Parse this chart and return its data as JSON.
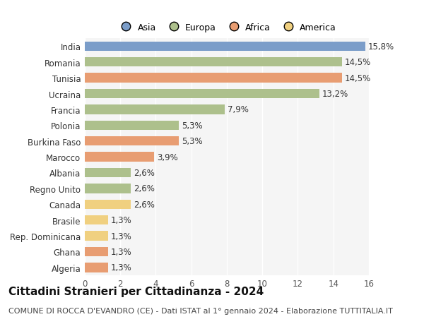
{
  "categories": [
    "India",
    "Romania",
    "Tunisia",
    "Ucraina",
    "Francia",
    "Polonia",
    "Burkina Faso",
    "Marocco",
    "Albania",
    "Regno Unito",
    "Canada",
    "Brasile",
    "Rep. Dominicana",
    "Ghana",
    "Algeria"
  ],
  "values": [
    15.8,
    14.5,
    14.5,
    13.2,
    7.9,
    5.3,
    5.3,
    3.9,
    2.6,
    2.6,
    2.6,
    1.3,
    1.3,
    1.3,
    1.3
  ],
  "labels": [
    "15,8%",
    "14,5%",
    "14,5%",
    "13,2%",
    "7,9%",
    "5,3%",
    "5,3%",
    "3,9%",
    "2,6%",
    "2,6%",
    "2,6%",
    "1,3%",
    "1,3%",
    "1,3%",
    "1,3%"
  ],
  "colors": [
    "#7b9dc9",
    "#adc08c",
    "#e89d72",
    "#adc08c",
    "#adc08c",
    "#adc08c",
    "#e89d72",
    "#e89d72",
    "#adc08c",
    "#adc08c",
    "#f0d080",
    "#f0d080",
    "#f0d080",
    "#e89d72",
    "#e89d72"
  ],
  "legend_labels": [
    "Asia",
    "Europa",
    "Africa",
    "America"
  ],
  "legend_colors": [
    "#7b9dc9",
    "#adc08c",
    "#e89d72",
    "#f0d080"
  ],
  "title": "Cittadini Stranieri per Cittadinanza - 2024",
  "subtitle": "COMUNE DI ROCCA D'EVANDRO (CE) - Dati ISTAT al 1° gennaio 2024 - Elaborazione TUTTITALIA.IT",
  "xlim": [
    0,
    16
  ],
  "xticks": [
    0,
    2,
    4,
    6,
    8,
    10,
    12,
    14,
    16
  ],
  "background_color": "#ffffff",
  "plot_bg_color": "#f5f5f5",
  "grid_color": "#ffffff",
  "bar_height": 0.6,
  "title_fontsize": 11,
  "subtitle_fontsize": 8,
  "label_fontsize": 8.5,
  "tick_fontsize": 8.5,
  "legend_fontsize": 9
}
